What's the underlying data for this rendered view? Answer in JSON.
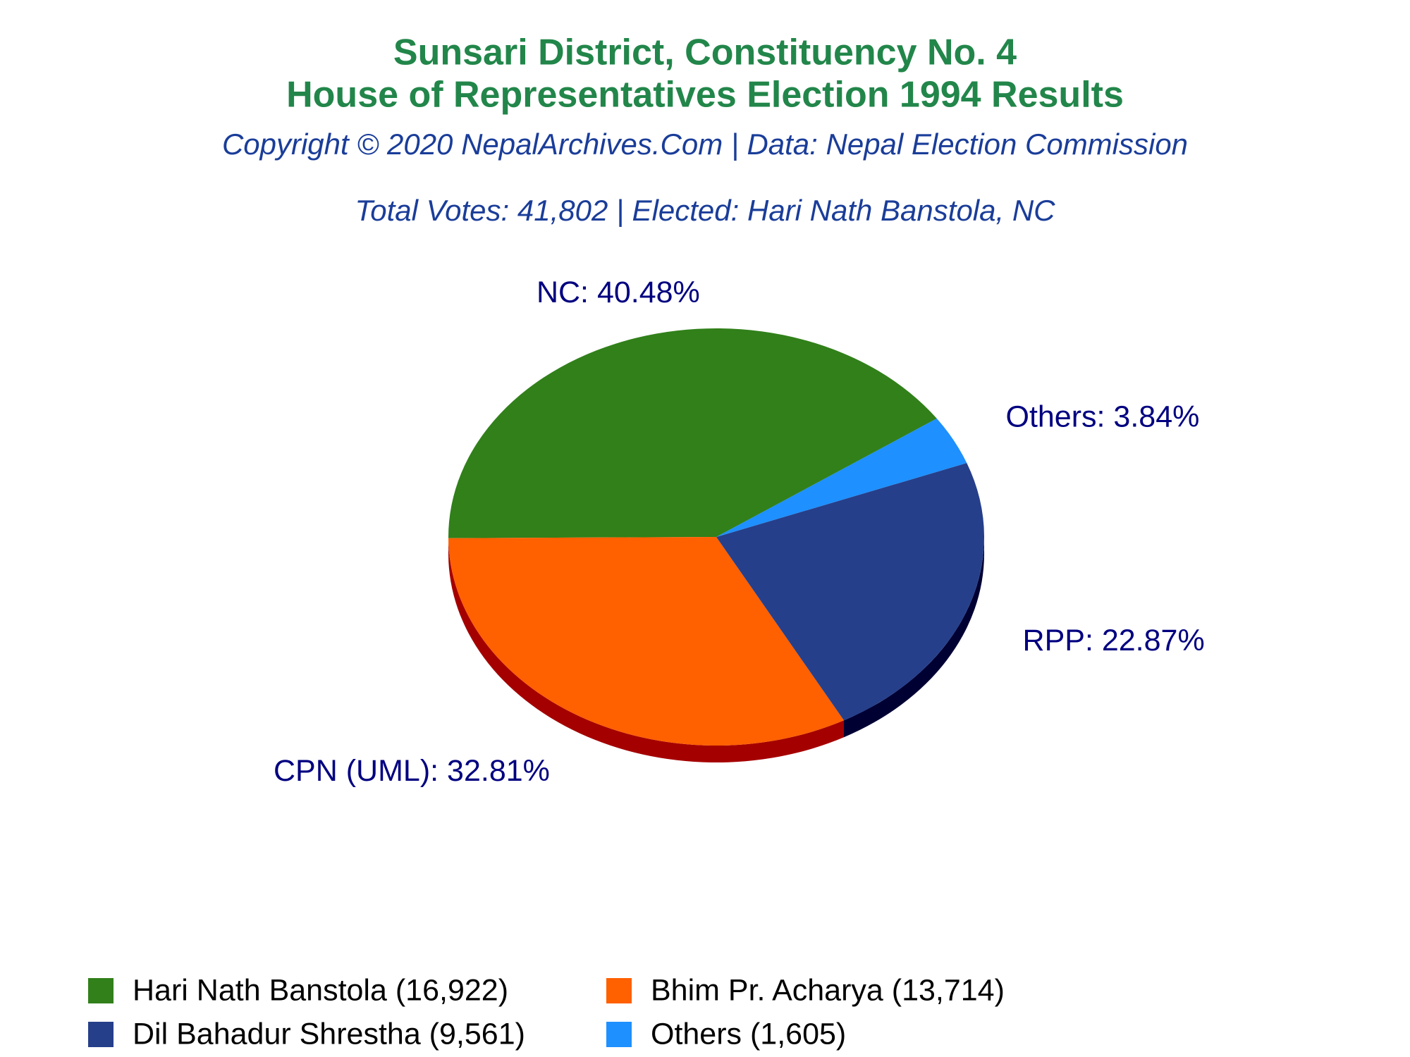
{
  "chart_data": {
    "type": "pie",
    "title": "Sunsari District, Constituency No. 4",
    "subtitle": "House of Representatives Election 1994 Results",
    "source": "Copyright © 2020 NepalArchives.Com | Data: Nepal Election Commission",
    "annotation": "Total Votes: 41,802 | Elected: Hari Nath Banstola, NC",
    "series": [
      {
        "name": "Hari Nath Banstola (16,922)",
        "color": "#31801a",
        "side_color": "#1d4d10",
        "values": [
          40.48
        ],
        "value_labels": [
          "NC: 40.48%"
        ]
      },
      {
        "name": "Bhim Pr. Acharya (13,714)",
        "color": "#ff6000",
        "side_color": "#a50000",
        "values": [
          32.81
        ],
        "value_labels": [
          "CPN (UML): 32.81%"
        ]
      },
      {
        "name": "Dil Bahadur Shrestha (9,561)",
        "color": "#263f8a",
        "side_color": "#000033",
        "values": [
          22.87
        ],
        "value_labels": [
          "RPP: 22.87%"
        ]
      },
      {
        "name": "Others (1,605)",
        "color": "#1e90ff",
        "side_color": "#0b5aa8",
        "values": [
          3.84
        ],
        "value_labels": [
          "Others: 3.84%"
        ]
      }
    ]
  }
}
